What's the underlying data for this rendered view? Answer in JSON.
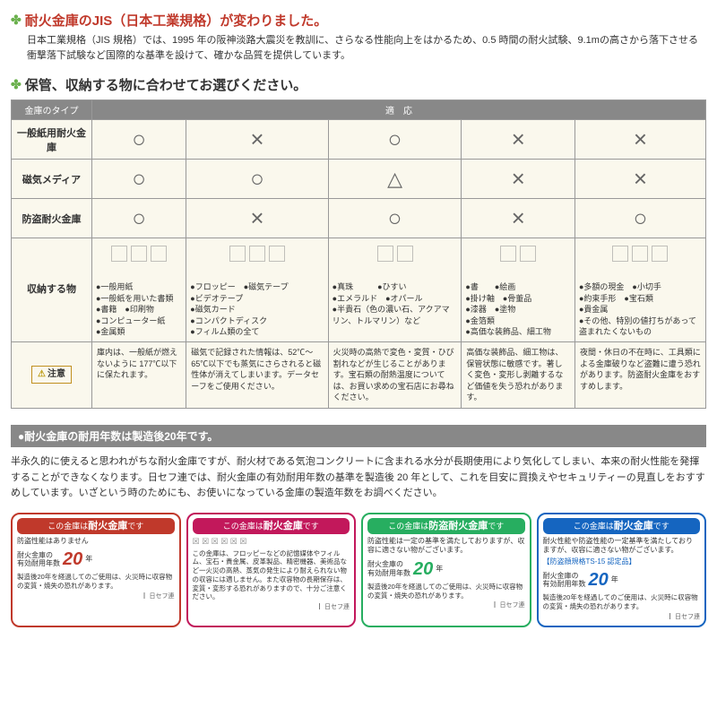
{
  "s1": {
    "title": "耐火金庫のJIS（日本工業規格）が変わりました。",
    "intro": "日本工業規格（JIS 規格）では、1995 年の阪神淡路大震災を教訓に、さらなる性能向上をはかるため、0.5 時間の耐火試験、9.1mの高さから落下させる衝撃落下試験など国際的な基準を設けて、確かな品質を提供しています。"
  },
  "s2": {
    "title": "保管、収納する物に合わせてお選びください。"
  },
  "tbl": {
    "h1": "金庫のタイプ",
    "h2": "適　応",
    "rows": [
      {
        "l": "一般紙用耐火金庫",
        "c": [
          "○",
          "×",
          "○",
          "×",
          "×"
        ]
      },
      {
        "l": "磁気メディア",
        "c": [
          "○",
          "○",
          "△",
          "×",
          "×"
        ]
      },
      {
        "l": "防盗耐火金庫",
        "c": [
          "○",
          "×",
          "○",
          "×",
          "○"
        ]
      }
    ],
    "items": {
      "l": "収納する物",
      "cols": [
        "●一般用紙\n●一般紙を用いた書類\n●書籍　●印刷物\n●コンピューター紙\n●金属類",
        "●フロッピー　●磁気テープ\n●ビデオテープ\n●磁気カード\n●コンパクトディスク\n●フィルム類の全て",
        "●真珠　　　●ひすい\n●エメラルド　●オパール\n●半貴石（色の濃い石、アクアマリン、トルマリン）など",
        "●書　　●絵画\n●掛け軸　●骨董品\n●漆器　●塗物\n●金箔類\n●高価な装飾品、細工物",
        "●多額の現金　●小切手\n●約束手形　●宝石類\n●貴金属\n●その他、特別の値打ちがあって盗まれたくないもの"
      ]
    },
    "caution": {
      "l": "注意",
      "cols": [
        "庫内は、一般紙が燃えないように 177℃以下に保たれます。",
        "磁気で記録された情報は、52℃〜65℃以下でも蒸気にさらされると磁性体が消えてしまいます。データセーフをご使用ください。",
        "火災時の高熱で変色・変質・ひび割れなどが生じることがあります。宝石類の耐熱温度については、お買い求めの宝石店にお尋ねください。",
        "高価な装飾品、細工物は、保管状態に敏感です。著しく変色・変形し剥離するなど価値を失う恐れがあります。",
        "夜間・休日の不在時に、工具類による金庫破りなど盗難に遭う恐れがあります。防盗耐火金庫をおすすめします。"
      ]
    }
  },
  "bar": "●耐火金庫の耐用年数は製造後20年です。",
  "p2": "半永久的に使えると思われがちな耐火金庫ですが、耐火材である気泡コンクリートに含まれる水分が長期使用により気化してしまい、本来の耐火性能を発揮することができなくなります。日セフ連では、耐火金庫の有効耐用年数の基準を製造後 20 年として、これを目安に買換えやセキュリティーの見直しをおすすめしています。いざという時のためにも、お使いになっている金庫の製造年数をお調べください。",
  "cards": [
    {
      "head_pre": "この金庫は",
      "head_b": "耐火金庫",
      "head_post": "です",
      "sub": "防盗性能はありません",
      "yrt": "耐火金庫の\n有効耐用年数",
      "yr": "20",
      "yu": "年",
      "foot": "製造後20年を経過してのご使用は、火災時に収容物の変質・焼失の恐れがあります。",
      "brand": "日セフ連"
    },
    {
      "head_pre": "この金庫は",
      "head_b": "耐火金庫",
      "head_post": "です",
      "sub": "",
      "yrt": "",
      "yr": "",
      "yu": "",
      "foot": "この金庫は、フロッピーなどの記憶媒体やフィルム、宝石・貴金属、皮革製品、精密機器、美術品など一火災の高熱、蒸気の発生により耐えられない物の収容には適しません。また収容物の長期保存は、変質・変形する恐れがありますので、十分ご注意ください。",
      "brand": "日セフ連",
      "xicons": true
    },
    {
      "head_pre": "この金庫は",
      "head_b": "防盗耐火金庫",
      "head_post": "です",
      "sub": "防盗性能は一定の基準を満たしておりますが、収容に適さない物がございます。",
      "yrt": "耐火金庫の\n有効耐用年数",
      "yr": "20",
      "yu": "年",
      "foot": "製造後20年を経過してのご使用は、火災時に収容物の変質・焼失の恐れがあります。",
      "brand": "日セフ連"
    },
    {
      "head_pre": "この金庫は",
      "head_b": "耐火金庫",
      "head_post": "です",
      "sub": "耐火性能や防盗性能の一定基準を満たしておりますが、収容に適さない物がございます。",
      "blue": "【防盗顔規格TS-15 認定品】",
      "yrt": "耐火金庫の\n有効耐用年数",
      "yr": "20",
      "yu": "年",
      "foot": "製造後20年を経過してのご使用は、火災時に収容物の変質・焼失の恐れがあります。",
      "brand": "日セフ連"
    }
  ]
}
